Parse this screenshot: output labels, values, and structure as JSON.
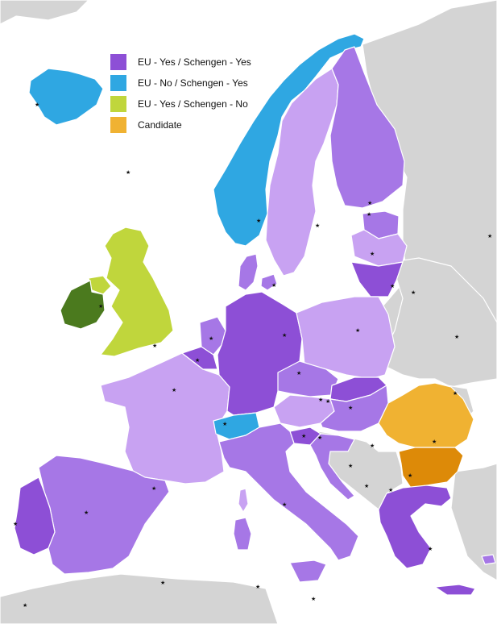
{
  "colors": {
    "sea": "#ffffff",
    "non_eu": "#d4d4d4",
    "eu_schengen_dark": "#8d4fd6",
    "eu_schengen_mid": "#a677e6",
    "eu_schengen_light": "#c8a2f2",
    "non_eu_schengen": "#2fa7e2",
    "eu_non_schengen_uk": "#c0d63c",
    "eu_non_schengen_ie": "#4b7a1e",
    "candidate_ro": "#f0b232",
    "candidate_bg": "#dd8a08"
  },
  "legend": [
    {
      "label": "EU - Yes / Schengen - Yes",
      "color": "#8d4fd6"
    },
    {
      "label": "EU - No / Schengen - Yes",
      "color": "#2fa7e2"
    },
    {
      "label": "EU - Yes / Schengen - No",
      "color": "#c0d63c"
    },
    {
      "label": "Candidate",
      "color": "#f0b232"
    }
  ],
  "capital_marker": "★"
}
